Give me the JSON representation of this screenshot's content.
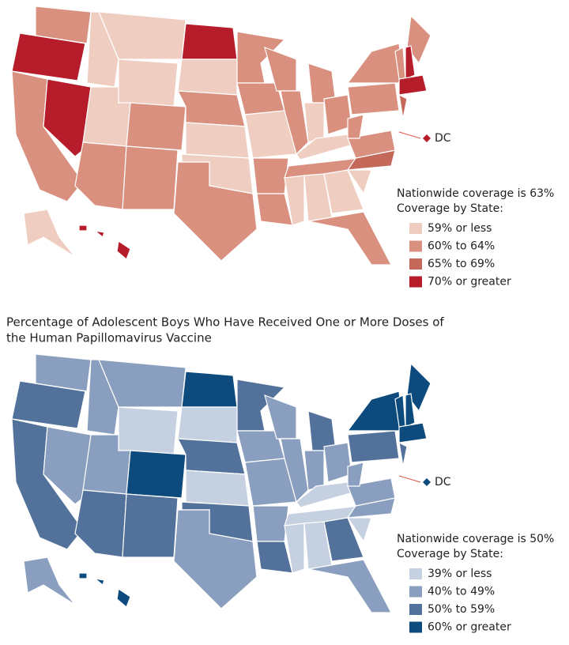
{
  "maps": [
    {
      "dc_label": "DC",
      "nationwide": "Nationwide coverage is 63%",
      "legend_title": "Coverage by State:",
      "legend": [
        {
          "label": "59% or less",
          "color": "#efcdc1"
        },
        {
          "label": "60% to 64%",
          "color": "#d9907f"
        },
        {
          "label": "65% to 69%",
          "color": "#c4685a"
        },
        {
          "label": "70% or greater",
          "color": "#b71c2a"
        }
      ]
    },
    {
      "title_lines": [
        "Percentage of Adolescent Boys Who Have Received One or More Doses of",
        "the Human Papillomavirus Vaccine"
      ],
      "dc_label": "DC",
      "nationwide": "Nationwide coverage is 50%",
      "legend_title": "Coverage by State:",
      "legend": [
        {
          "label": "39% or less",
          "color": "#c5d0e1"
        },
        {
          "label": "40% to 49%",
          "color": "#8a9fbf"
        },
        {
          "label": "50% to 59%",
          "color": "#52729b"
        },
        {
          "label": "60% or greater",
          "color": "#0d4a7d"
        }
      ]
    }
  ]
}
